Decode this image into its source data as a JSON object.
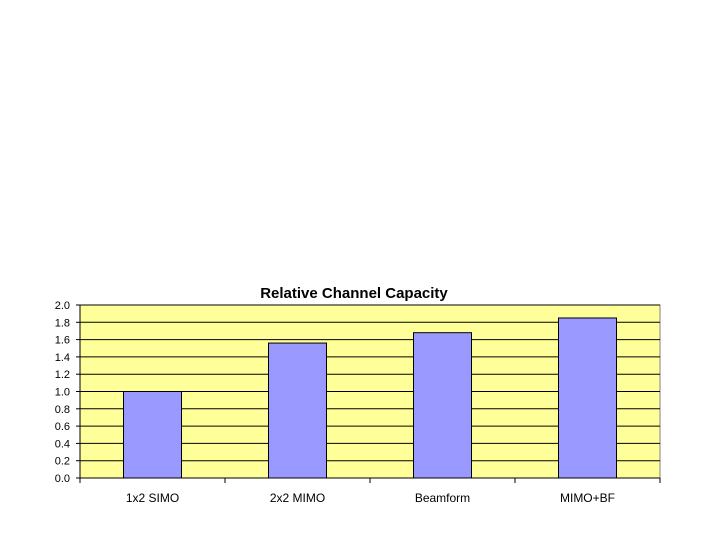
{
  "chart_data": {
    "type": "bar",
    "title": "Relative Channel Capacity",
    "xlabel": "",
    "ylabel": "",
    "categories": [
      "1x2 SIMO",
      "2x2 MIMO",
      "Beamform",
      "MIMO+BF"
    ],
    "values": [
      1.0,
      1.56,
      1.68,
      1.85
    ],
    "ylim": [
      0,
      2.0
    ],
    "yticks": [
      "0.0",
      "0.2",
      "0.4",
      "0.6",
      "0.8",
      "1.0",
      "1.2",
      "1.4",
      "1.6",
      "1.8",
      "2.0"
    ],
    "grid": true,
    "legend": "none",
    "colors": {
      "bar": "#9999ff",
      "plot_background": "#ffff99",
      "grid": "#000000",
      "text": "#000000"
    }
  }
}
